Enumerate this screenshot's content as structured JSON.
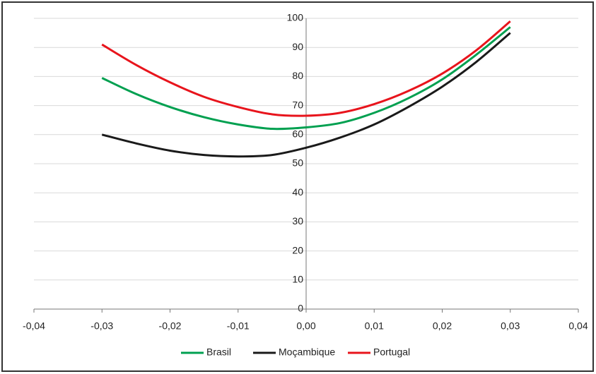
{
  "chart_data": {
    "type": "line",
    "x": [
      -0.03,
      -0.025,
      -0.02,
      -0.015,
      -0.01,
      -0.005,
      0,
      0.005,
      0.01,
      0.015,
      0.02,
      0.025,
      0.03
    ],
    "series": [
      {
        "name": "Brasil",
        "color": "#00a050",
        "values": [
          79.5,
          74,
          69.5,
          66,
          63.5,
          62,
          62.5,
          64,
          67.5,
          72.5,
          79,
          87.5,
          97
        ]
      },
      {
        "name": "Moçambique",
        "color": "#1a1a1a",
        "values": [
          60,
          57,
          54.5,
          53,
          52.5,
          53,
          55.5,
          59,
          63.5,
          69.5,
          76.5,
          85,
          95
        ]
      },
      {
        "name": "Portugal",
        "color": "#e8141c",
        "values": [
          91,
          84,
          78,
          73,
          69.5,
          67,
          66.5,
          67.5,
          70.5,
          75,
          81,
          89,
          99
        ]
      }
    ],
    "xlim": [
      -0.04,
      0.04
    ],
    "xticks": [
      {
        "value": -0.04,
        "label": "-0,04"
      },
      {
        "value": -0.03,
        "label": "-0,03"
      },
      {
        "value": -0.02,
        "label": "-0,02"
      },
      {
        "value": -0.01,
        "label": "-0,01"
      },
      {
        "value": 0,
        "label": "0,00"
      },
      {
        "value": 0.01,
        "label": "0,01"
      },
      {
        "value": 0.02,
        "label": "0,02"
      },
      {
        "value": 0.03,
        "label": "0,03"
      },
      {
        "value": 0.04,
        "label": "0,04"
      }
    ],
    "ylim": [
      0,
      100
    ],
    "yticks": [
      0,
      10,
      20,
      30,
      40,
      50,
      60,
      70,
      80,
      90,
      100
    ],
    "grid": true,
    "legend": "bottom"
  }
}
